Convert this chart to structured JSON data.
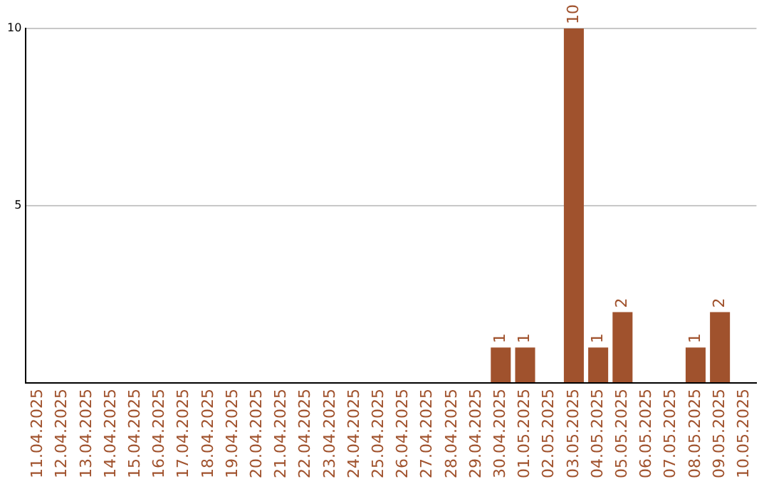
{
  "chart_data": {
    "type": "bar",
    "categories": [
      "11.04.2025",
      "12.04.2025",
      "13.04.2025",
      "14.04.2025",
      "15.04.2025",
      "16.04.2025",
      "17.04.2025",
      "18.04.2025",
      "19.04.2025",
      "20.04.2025",
      "21.04.2025",
      "22.04.2025",
      "23.04.2025",
      "24.04.2025",
      "25.04.2025",
      "26.04.2025",
      "27.04.2025",
      "28.04.2025",
      "29.04.2025",
      "30.04.2025",
      "01.05.2025",
      "02.05.2025",
      "03.05.2025",
      "04.05.2025",
      "05.05.2025",
      "06.05.2025",
      "07.05.2025",
      "08.05.2025",
      "09.05.2025",
      "10.05.2025"
    ],
    "values": [
      0,
      0,
      0,
      0,
      0,
      0,
      0,
      0,
      0,
      0,
      0,
      0,
      0,
      0,
      0,
      0,
      0,
      0,
      0,
      1,
      1,
      0,
      10,
      1,
      2,
      0,
      0,
      1,
      2,
      0
    ],
    "value_labels": [
      null,
      null,
      null,
      null,
      null,
      null,
      null,
      null,
      null,
      null,
      null,
      null,
      null,
      null,
      null,
      null,
      null,
      null,
      null,
      "1",
      "1",
      null,
      "10",
      "1",
      "2",
      null,
      null,
      "1",
      "2",
      null
    ],
    "color": "#a0522d",
    "ylim": [
      0,
      10
    ],
    "yticks": [
      {
        "value": 0,
        "label": null
      },
      5,
      10
    ],
    "grid": "y",
    "legend": false
  }
}
